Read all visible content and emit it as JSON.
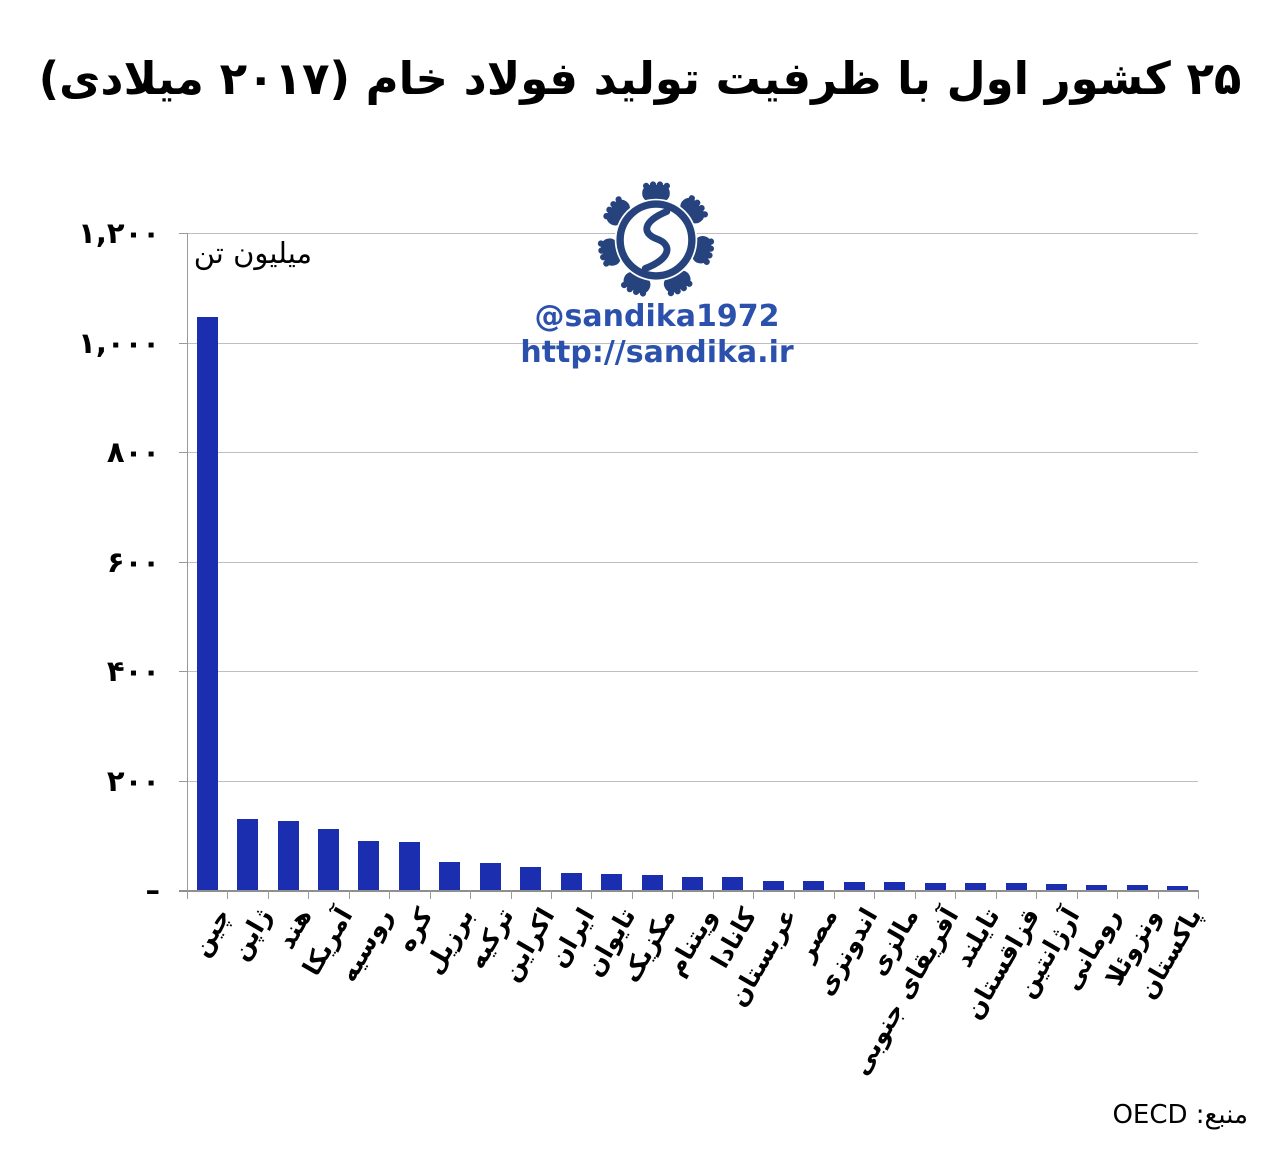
{
  "title": "۲۵ کشور اول با ظرفیت تولید فولاد خام (۲۰۱۷ میلادی)",
  "unit_label": "میلیون تن",
  "watermark": {
    "handle": "@sandika1972",
    "url": "http://sandika.ir",
    "logo_name": "sandika-logo",
    "text_color": "#2b51ad",
    "logo_color": "#26437e"
  },
  "source_text": "منبع: OECD",
  "colors": {
    "bar": "#1b2eb0",
    "gridline": "#bfbfbf",
    "axis": "#8f8f8f",
    "text": "#000000"
  },
  "chart_data": {
    "type": "bar",
    "title": "۲۵ کشور اول با ظرفیت تولید فولاد خام (۲۰۱۷ میلادی)",
    "ylabel": "میلیون تن",
    "xlabel": "",
    "ylim": [
      0,
      1200
    ],
    "grid": true,
    "legend": false,
    "bar_color": "#1b2eb0",
    "categories": [
      "چین",
      "ژاپن",
      "هند",
      "آمریکا",
      "روسیه",
      "کره",
      "برزیل",
      "ترکیه",
      "اکراین",
      "ایران",
      "تایوان",
      "مکزیک",
      "ویتنام",
      "کانادا",
      "عربستان",
      "مصر",
      "اندونزی",
      "مالزی",
      "آفریقای جنوبی",
      "تایلند",
      "قزاقستان",
      "آرژانتین",
      "رومانی",
      "ونزوئلا",
      "پاکستان"
    ],
    "values": [
      1047,
      130,
      126,
      112,
      89,
      88,
      51,
      49,
      42,
      31,
      30,
      28,
      24,
      23,
      17,
      16,
      15,
      14,
      13,
      12,
      12,
      11,
      10,
      10,
      8
    ],
    "y_ticks": [
      {
        "label": "۱,۲۰۰",
        "value": 1200
      },
      {
        "label": "۱,۰۰۰",
        "value": 1000
      },
      {
        "label": "۸۰۰",
        "value": 800
      },
      {
        "label": "۶۰۰",
        "value": 600
      },
      {
        "label": "۴۰۰",
        "value": 400
      },
      {
        "label": "۲۰۰",
        "value": 200
      },
      {
        "label": "–",
        "value": 0
      }
    ]
  }
}
